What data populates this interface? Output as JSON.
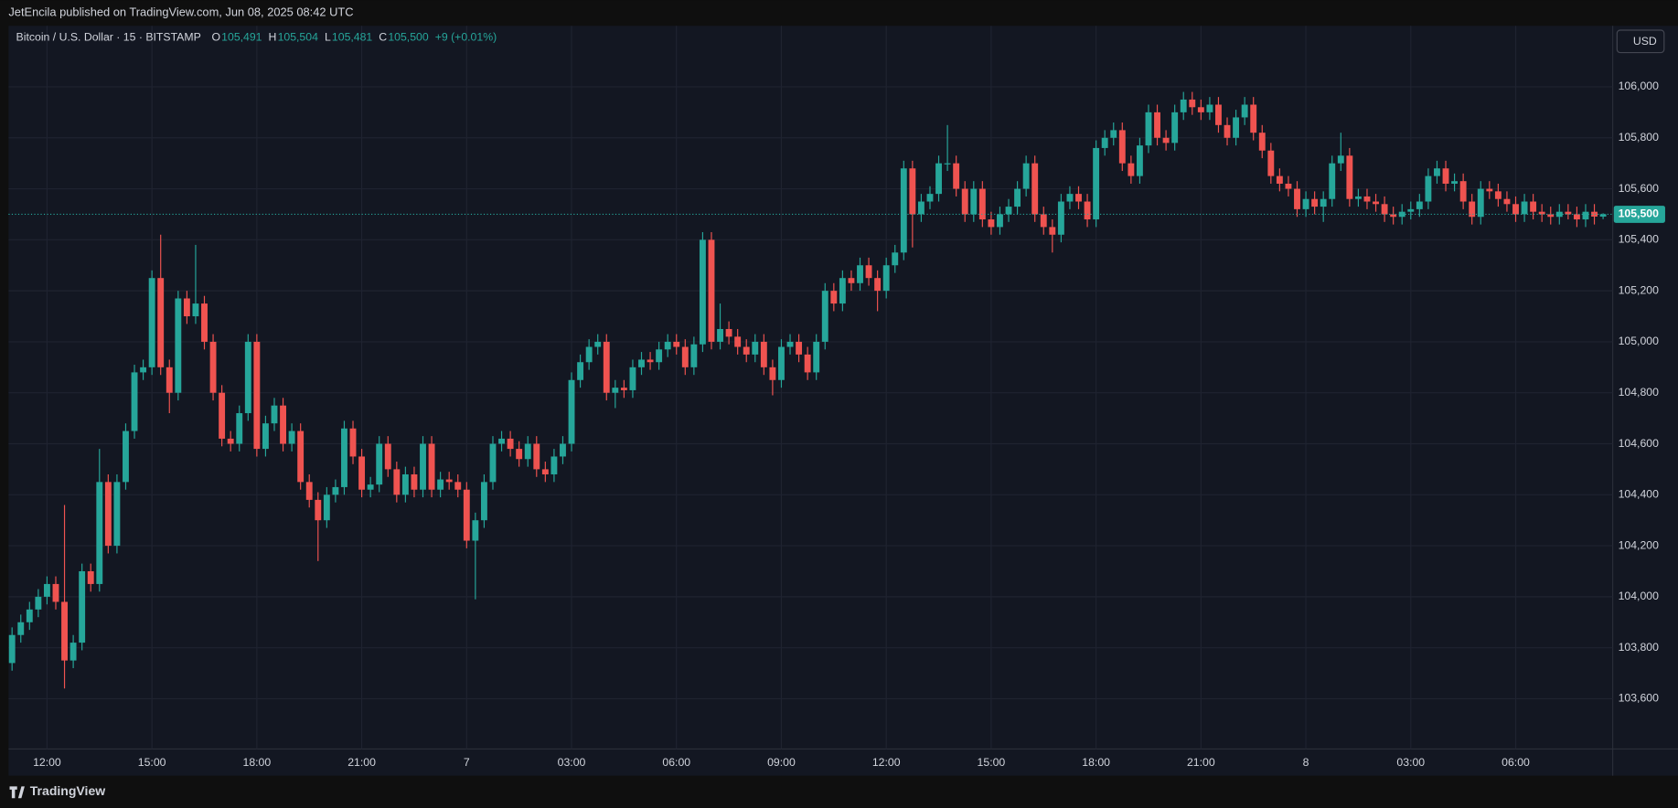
{
  "header": {
    "published": "JetEncila published on TradingView.com, Jun 08, 2025 08:42 UTC"
  },
  "footer": {
    "brand": "TradingView"
  },
  "chart_data": {
    "type": "candlestick",
    "symbol": "Bitcoin / U.S. Dollar · 15 · BITSTAMP",
    "legend": [
      {
        "key": "O",
        "value": "105,491"
      },
      {
        "key": "H",
        "value": "105,504"
      },
      {
        "key": "L",
        "value": "105,481"
      },
      {
        "key": "C",
        "value": "105,500"
      }
    ],
    "change": "+9 (+0.01%)",
    "currency": "USD",
    "last_price_label": "105,500",
    "up_color": "#26a69a",
    "down_color": "#ef5350",
    "grid": true,
    "xlim": [
      -0.4,
      183.1
    ],
    "xticks": [
      {
        "value": 4,
        "label": "12:00"
      },
      {
        "value": 16,
        "label": "15:00"
      },
      {
        "value": 28,
        "label": "18:00"
      },
      {
        "value": 40,
        "label": "21:00"
      },
      {
        "value": 52,
        "label": "7"
      },
      {
        "value": 64,
        "label": "03:00"
      },
      {
        "value": 76,
        "label": "06:00"
      },
      {
        "value": 88,
        "label": "09:00"
      },
      {
        "value": 100,
        "label": "12:00"
      },
      {
        "value": 112,
        "label": "15:00"
      },
      {
        "value": 124,
        "label": "18:00"
      },
      {
        "value": 136,
        "label": "21:00"
      },
      {
        "value": 148,
        "label": "8"
      },
      {
        "value": 160,
        "label": "03:00"
      },
      {
        "value": 172,
        "label": "06:00"
      }
    ],
    "ylim": [
      103403,
      106239
    ],
    "yticks": [
      {
        "value": 103600,
        "label": "103,600"
      },
      {
        "value": 103800,
        "label": "103,800"
      },
      {
        "value": 104000,
        "label": "104,000"
      },
      {
        "value": 104200,
        "label": "104,200"
      },
      {
        "value": 104400,
        "label": "104,400"
      },
      {
        "value": 104600,
        "label": "104,600"
      },
      {
        "value": 104800,
        "label": "104,800"
      },
      {
        "value": 105000,
        "label": "105,000"
      },
      {
        "value": 105200,
        "label": "105,200"
      },
      {
        "value": 105400,
        "label": "105,400"
      },
      {
        "value": 105600,
        "label": "105,600"
      },
      {
        "value": 105800,
        "label": "105,800"
      },
      {
        "value": 106000,
        "label": "106,000"
      }
    ],
    "open": [
      103740,
      103850,
      103900,
      103950,
      104000,
      104050,
      103980,
      103750,
      103820,
      104100,
      104050,
      104450,
      104200,
      104450,
      104650,
      104880,
      104900,
      105250,
      104900,
      104800,
      105170,
      105100,
      105150,
      105000,
      104800,
      104620,
      104600,
      104720,
      105000,
      104580,
      104680,
      104750,
      104600,
      104650,
      104450,
      104380,
      104300,
      104400,
      104430,
      104660,
      104550,
      104420,
      104440,
      104600,
      104500,
      104400,
      104480,
      104420,
      104600,
      104420,
      104460,
      104450,
      104420,
      104220,
      104300,
      104450,
      104600,
      104620,
      104580,
      104540,
      104600,
      104500,
      104480,
      104550,
      104600,
      104850,
      104920,
      104980,
      105000,
      104800,
      104820,
      104810,
      104900,
      104930,
      104920,
      104970,
      105000,
      104980,
      104900,
      104990,
      105400,
      105000,
      105050,
      105020,
      104980,
      104950,
      105000,
      104900,
      104850,
      104980,
      105000,
      104950,
      104880,
      105000,
      105200,
      105150,
      105250,
      105230,
      105300,
      105250,
      105200,
      105300,
      105350,
      105680,
      105500,
      105550,
      105580,
      105700,
      105700,
      105600,
      105500,
      105600,
      105480,
      105450,
      105500,
      105530,
      105600,
      105700,
      105500,
      105450,
      105420,
      105550,
      105580,
      105550,
      105480,
      105760,
      105800,
      105830,
      105700,
      105650,
      105770,
      105900,
      105800,
      105780,
      105900,
      105950,
      105920,
      105900,
      105930,
      105850,
      105800,
      105880,
      105930,
      105820,
      105750,
      105650,
      105620,
      105600,
      105520,
      105560,
      105530,
      105560,
      105700,
      105730,
      105560,
      105570,
      105550,
      105540,
      105500,
      105490,
      105510,
      105520,
      105550,
      105650,
      105680,
      105620,
      105630,
      105550,
      105490,
      105600,
      105590,
      105560,
      105540,
      105500,
      105550,
      105510,
      105500,
      105490,
      105510,
      105500,
      105480,
      105510,
      105491
    ],
    "high": [
      103880,
      103930,
      103980,
      104030,
      104080,
      104080,
      104360,
      103850,
      104130,
      104130,
      104580,
      104480,
      104480,
      104680,
      104910,
      104930,
      105280,
      105420,
      104930,
      105200,
      105200,
      105380,
      105180,
      105030,
      104830,
      104650,
      104750,
      105030,
      105030,
      104710,
      104780,
      104780,
      104680,
      104680,
      104480,
      104410,
      104430,
      104460,
      104690,
      104690,
      104580,
      104470,
      104630,
      104630,
      104530,
      104510,
      104510,
      104630,
      104630,
      104490,
      104490,
      104480,
      104450,
      104330,
      104480,
      104630,
      104650,
      104650,
      104610,
      104630,
      104630,
      104530,
      104580,
      104630,
      104880,
      104950,
      105010,
      105030,
      105030,
      104850,
      104850,
      104930,
      104960,
      104960,
      105000,
      105030,
      105030,
      105010,
      105020,
      105430,
      105430,
      105150,
      105080,
      105050,
      105010,
      105030,
      105030,
      104930,
      105010,
      105030,
      105030,
      104980,
      105030,
      105230,
      105230,
      105280,
      105280,
      105330,
      105330,
      105280,
      105330,
      105380,
      105710,
      105710,
      105580,
      105610,
      105730,
      105850,
      105730,
      105630,
      105630,
      105630,
      105510,
      105530,
      105560,
      105630,
      105730,
      105730,
      105530,
      105480,
      105580,
      105610,
      105610,
      105580,
      105790,
      105830,
      105860,
      105860,
      105730,
      105800,
      105930,
      105930,
      105830,
      105930,
      105980,
      105980,
      105950,
      105960,
      105960,
      105880,
      105910,
      105960,
      105960,
      105850,
      105780,
      105680,
      105650,
      105630,
      105590,
      105590,
      105590,
      105730,
      105820,
      105760,
      105600,
      105600,
      105580,
      105570,
      105530,
      105540,
      105550,
      105580,
      105680,
      105710,
      105710,
      105660,
      105660,
      105580,
      105630,
      105630,
      105620,
      105590,
      105570,
      105580,
      105580,
      105540,
      105530,
      105540,
      105540,
      105530,
      105540,
      105540,
      105504
    ],
    "low": [
      103710,
      103820,
      103870,
      103920,
      103970,
      103950,
      103640,
      103720,
      103790,
      104020,
      104020,
      104170,
      104170,
      104420,
      104620,
      104850,
      104870,
      104870,
      104720,
      104770,
      105070,
      105070,
      104970,
      104770,
      104590,
      104570,
      104570,
      104690,
      104550,
      104550,
      104650,
      104570,
      104570,
      104420,
      104350,
      104140,
      104270,
      104370,
      104400,
      104520,
      104390,
      104390,
      104410,
      104470,
      104370,
      104370,
      104390,
      104390,
      104390,
      104390,
      104420,
      104390,
      104190,
      103990,
      104270,
      104420,
      104570,
      104550,
      104510,
      104510,
      104470,
      104450,
      104450,
      104520,
      104570,
      104820,
      104890,
      104950,
      104770,
      104740,
      104780,
      104780,
      104870,
      104890,
      104890,
      104940,
      104950,
      104870,
      104870,
      104960,
      104970,
      104970,
      104990,
      104950,
      104920,
      104920,
      104870,
      104790,
      104820,
      104950,
      104920,
      104850,
      104850,
      104970,
      105120,
      105120,
      105200,
      105200,
      105220,
      105120,
      105170,
      105270,
      105320,
      105370,
      105470,
      105520,
      105550,
      105670,
      105570,
      105470,
      105470,
      105450,
      105420,
      105420,
      105470,
      105500,
      105570,
      105470,
      105420,
      105350,
      105390,
      105520,
      105520,
      105450,
      105450,
      105730,
      105770,
      105670,
      105620,
      105620,
      105740,
      105770,
      105750,
      105750,
      105870,
      105890,
      105870,
      105870,
      105820,
      105770,
      105770,
      105850,
      105790,
      105720,
      105620,
      105590,
      105570,
      105490,
      105490,
      105500,
      105470,
      105530,
      105670,
      105530,
      105530,
      105520,
      105510,
      105470,
      105460,
      105460,
      105480,
      105490,
      105520,
      105620,
      105590,
      105590,
      105520,
      105460,
      105460,
      105560,
      105530,
      105510,
      105470,
      105470,
      105480,
      105470,
      105460,
      105460,
      105480,
      105450,
      105450,
      105460,
      105481
    ],
    "close": [
      103850,
      103900,
      103950,
      104000,
      104050,
      103980,
      103750,
      103820,
      104100,
      104050,
      104450,
      104200,
      104450,
      104650,
      104880,
      104900,
      105250,
      104900,
      104800,
      105170,
      105100,
      105150,
      105000,
      104800,
      104620,
      104600,
      104720,
      105000,
      104580,
      104680,
      104750,
      104600,
      104650,
      104450,
      104380,
      104300,
      104400,
      104430,
      104660,
      104550,
      104420,
      104440,
      104600,
      104500,
      104400,
      104480,
      104420,
      104600,
      104420,
      104460,
      104450,
      104420,
      104220,
      104300,
      104450,
      104600,
      104620,
      104580,
      104540,
      104600,
      104500,
      104480,
      104550,
      104600,
      104850,
      104920,
      104980,
      105000,
      104800,
      104820,
      104810,
      104900,
      104930,
      104920,
      104970,
      105000,
      104980,
      104900,
      104990,
      105400,
      105000,
      105050,
      105020,
      104980,
      104950,
      105000,
      104900,
      104850,
      104980,
      105000,
      104950,
      104880,
      105000,
      105200,
      105150,
      105250,
      105230,
      105300,
      105250,
      105200,
      105300,
      105350,
      105680,
      105500,
      105550,
      105580,
      105700,
      105700,
      105600,
      105500,
      105600,
      105480,
      105450,
      105500,
      105530,
      105600,
      105700,
      105500,
      105450,
      105420,
      105550,
      105580,
      105550,
      105480,
      105760,
      105800,
      105830,
      105700,
      105650,
      105770,
      105900,
      105800,
      105780,
      105900,
      105950,
      105920,
      105900,
      105930,
      105850,
      105800,
      105880,
      105930,
      105820,
      105750,
      105650,
      105620,
      105600,
      105520,
      105560,
      105530,
      105560,
      105700,
      105730,
      105560,
      105570,
      105550,
      105540,
      105500,
      105490,
      105510,
      105520,
      105550,
      105650,
      105680,
      105620,
      105630,
      105550,
      105490,
      105600,
      105590,
      105560,
      105540,
      105500,
      105550,
      105510,
      105500,
      105490,
      105510,
      105500,
      105480,
      105510,
      105491,
      105500
    ]
  }
}
